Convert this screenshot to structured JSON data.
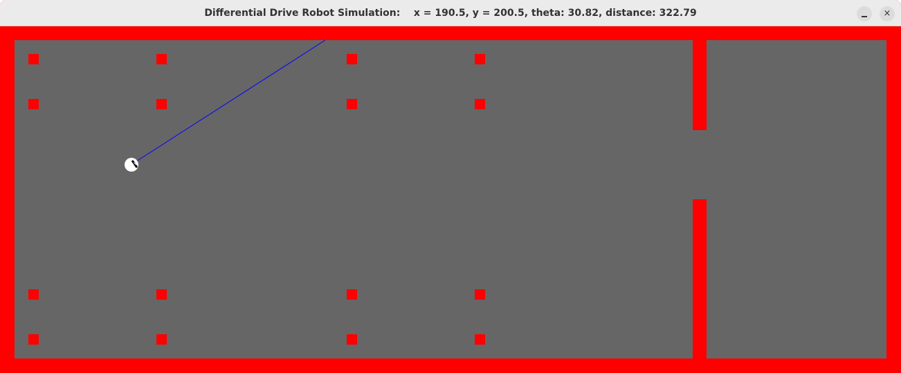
{
  "window": {
    "title": "Differential Drive Robot Simulation:    x = 190.5, y = 200.5, theta: 30.82, distance: 322.79",
    "minimize_label": "–",
    "close_label": "×"
  },
  "colors": {
    "wall": "#ff0000",
    "floor": "#666666",
    "sensor_ray": "#0000ff",
    "robot_body": "#ffffff",
    "robot_wheel": "#000000"
  },
  "icons": {
    "minimize": "minimize-icon",
    "close": "close-icon"
  }
}
